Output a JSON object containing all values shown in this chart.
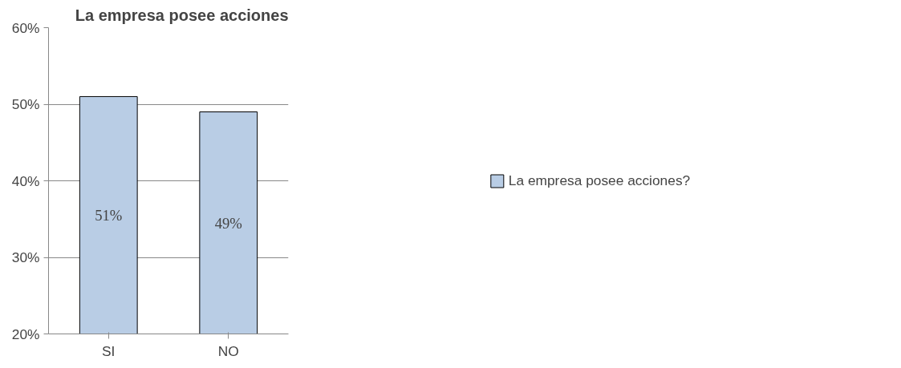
{
  "chart_data": {
    "type": "bar",
    "title": "La empresa posee acciones",
    "categories": [
      "SI",
      "NO"
    ],
    "series": [
      {
        "name": "La empresa posee acciones?",
        "color": "#b9cde5",
        "values": [
          51,
          49
        ],
        "value_labels": [
          "51%",
          "49%"
        ]
      }
    ],
    "ylim": [
      20,
      60
    ],
    "yticks": [
      {
        "value": 20,
        "label": "20%"
      },
      {
        "value": 30,
        "label": "30%"
      },
      {
        "value": 40,
        "label": "40%"
      },
      {
        "value": 50,
        "label": "50%"
      },
      {
        "value": 60,
        "label": "60%"
      }
    ],
    "grid": "y",
    "legend": "right"
  }
}
